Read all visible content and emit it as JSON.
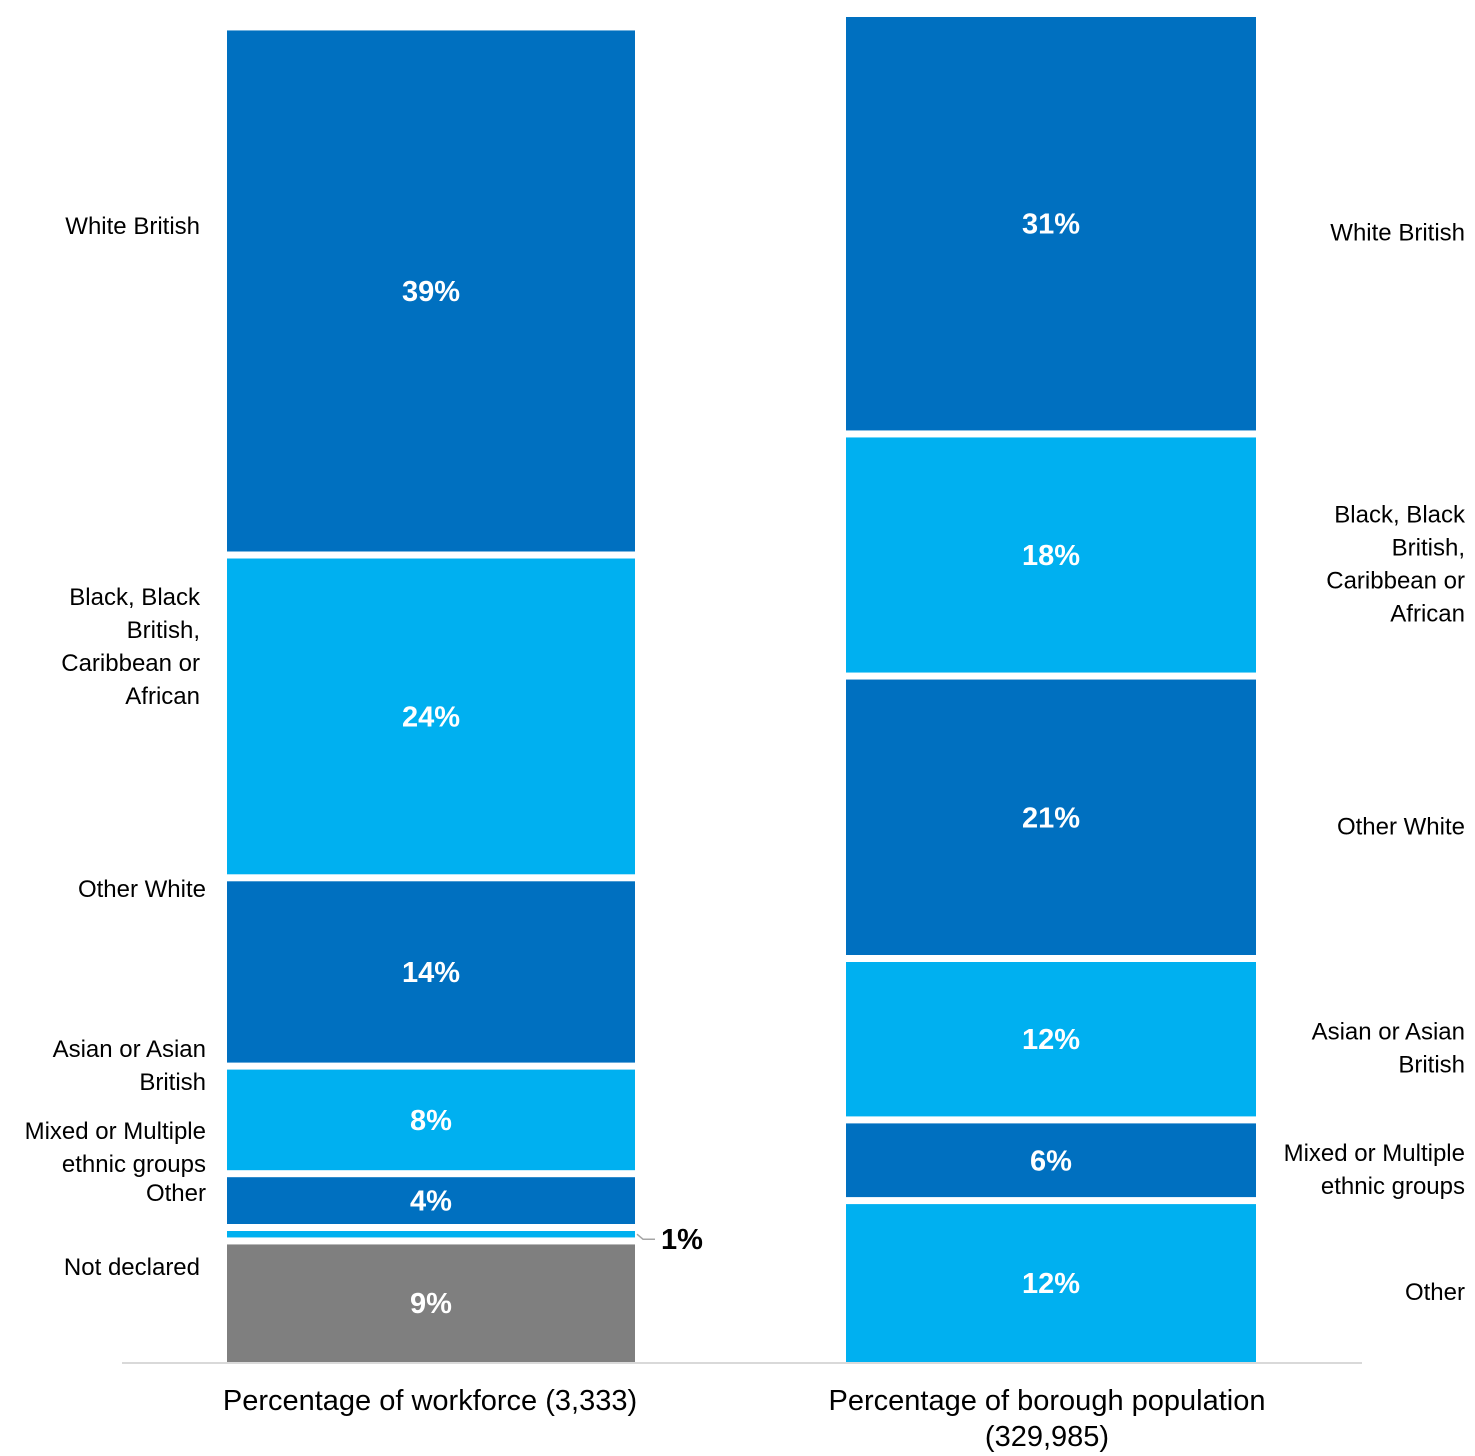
{
  "chart_data": {
    "type": "bar",
    "stacked": true,
    "orientation": "vertical",
    "ylim": [
      0,
      100
    ],
    "grid": false,
    "colors": {
      "dark": "#0070C0",
      "light": "#00B0F0",
      "grey": "#7F7F7F"
    },
    "categories": [
      {
        "line1": "Percentage of workforce (3,333)",
        "line2": ""
      },
      {
        "line1": "Percentage of borough population",
        "line2": "(329,985)"
      }
    ],
    "bars": [
      {
        "segments": [
          {
            "name": "White British",
            "value": 39,
            "label": "39%",
            "color": "dark",
            "label_lines": [
              "White British"
            ]
          },
          {
            "name": "Black, Black British, Caribbean or African",
            "value": 24,
            "label": "24%",
            "color": "light",
            "label_lines": [
              "Black, Black",
              "British,",
              "Caribbean or",
              "African"
            ]
          },
          {
            "name": "Other White",
            "value": 14,
            "label": "14%",
            "color": "dark",
            "label_lines": [
              "Other White"
            ]
          },
          {
            "name": "Asian or Asian British",
            "value": 8,
            "label": "8%",
            "color": "light",
            "label_lines": [
              "Asian or Asian",
              "British"
            ]
          },
          {
            "name": "Mixed or Multiple ethnic groups",
            "value": 4,
            "label": "4%",
            "color": "dark",
            "label_lines": [
              "Mixed or Multiple",
              "ethnic groups"
            ]
          },
          {
            "name": "Other",
            "value": 1,
            "label": "1%",
            "color": "light",
            "label_lines": [
              "Other"
            ]
          },
          {
            "name": "Not declared",
            "value": 9,
            "label": "9%",
            "color": "grey",
            "label_lines": [
              "Not declared"
            ]
          }
        ]
      },
      {
        "segments": [
          {
            "name": "White British",
            "value": 31,
            "label": "31%",
            "color": "dark",
            "label_lines": [
              "White British"
            ]
          },
          {
            "name": "Black, Black British, Caribbean or African",
            "value": 18,
            "label": "18%",
            "color": "light",
            "label_lines": [
              "Black, Black",
              "British,",
              "Caribbean or",
              "African"
            ]
          },
          {
            "name": "Other White",
            "value": 21,
            "label": "21%",
            "color": "dark",
            "label_lines": [
              "Other White"
            ]
          },
          {
            "name": "Asian or Asian British",
            "value": 12,
            "label": "12%",
            "color": "light",
            "label_lines": [
              "Asian or Asian",
              "British"
            ]
          },
          {
            "name": "Mixed or Multiple ethnic groups",
            "value": 6,
            "label": "6%",
            "color": "dark",
            "label_lines": [
              "Mixed or Multiple",
              "ethnic groups"
            ]
          },
          {
            "name": "Other",
            "value": 12,
            "label": "12%",
            "color": "light",
            "label_lines": [
              "Other"
            ]
          }
        ]
      }
    ]
  }
}
